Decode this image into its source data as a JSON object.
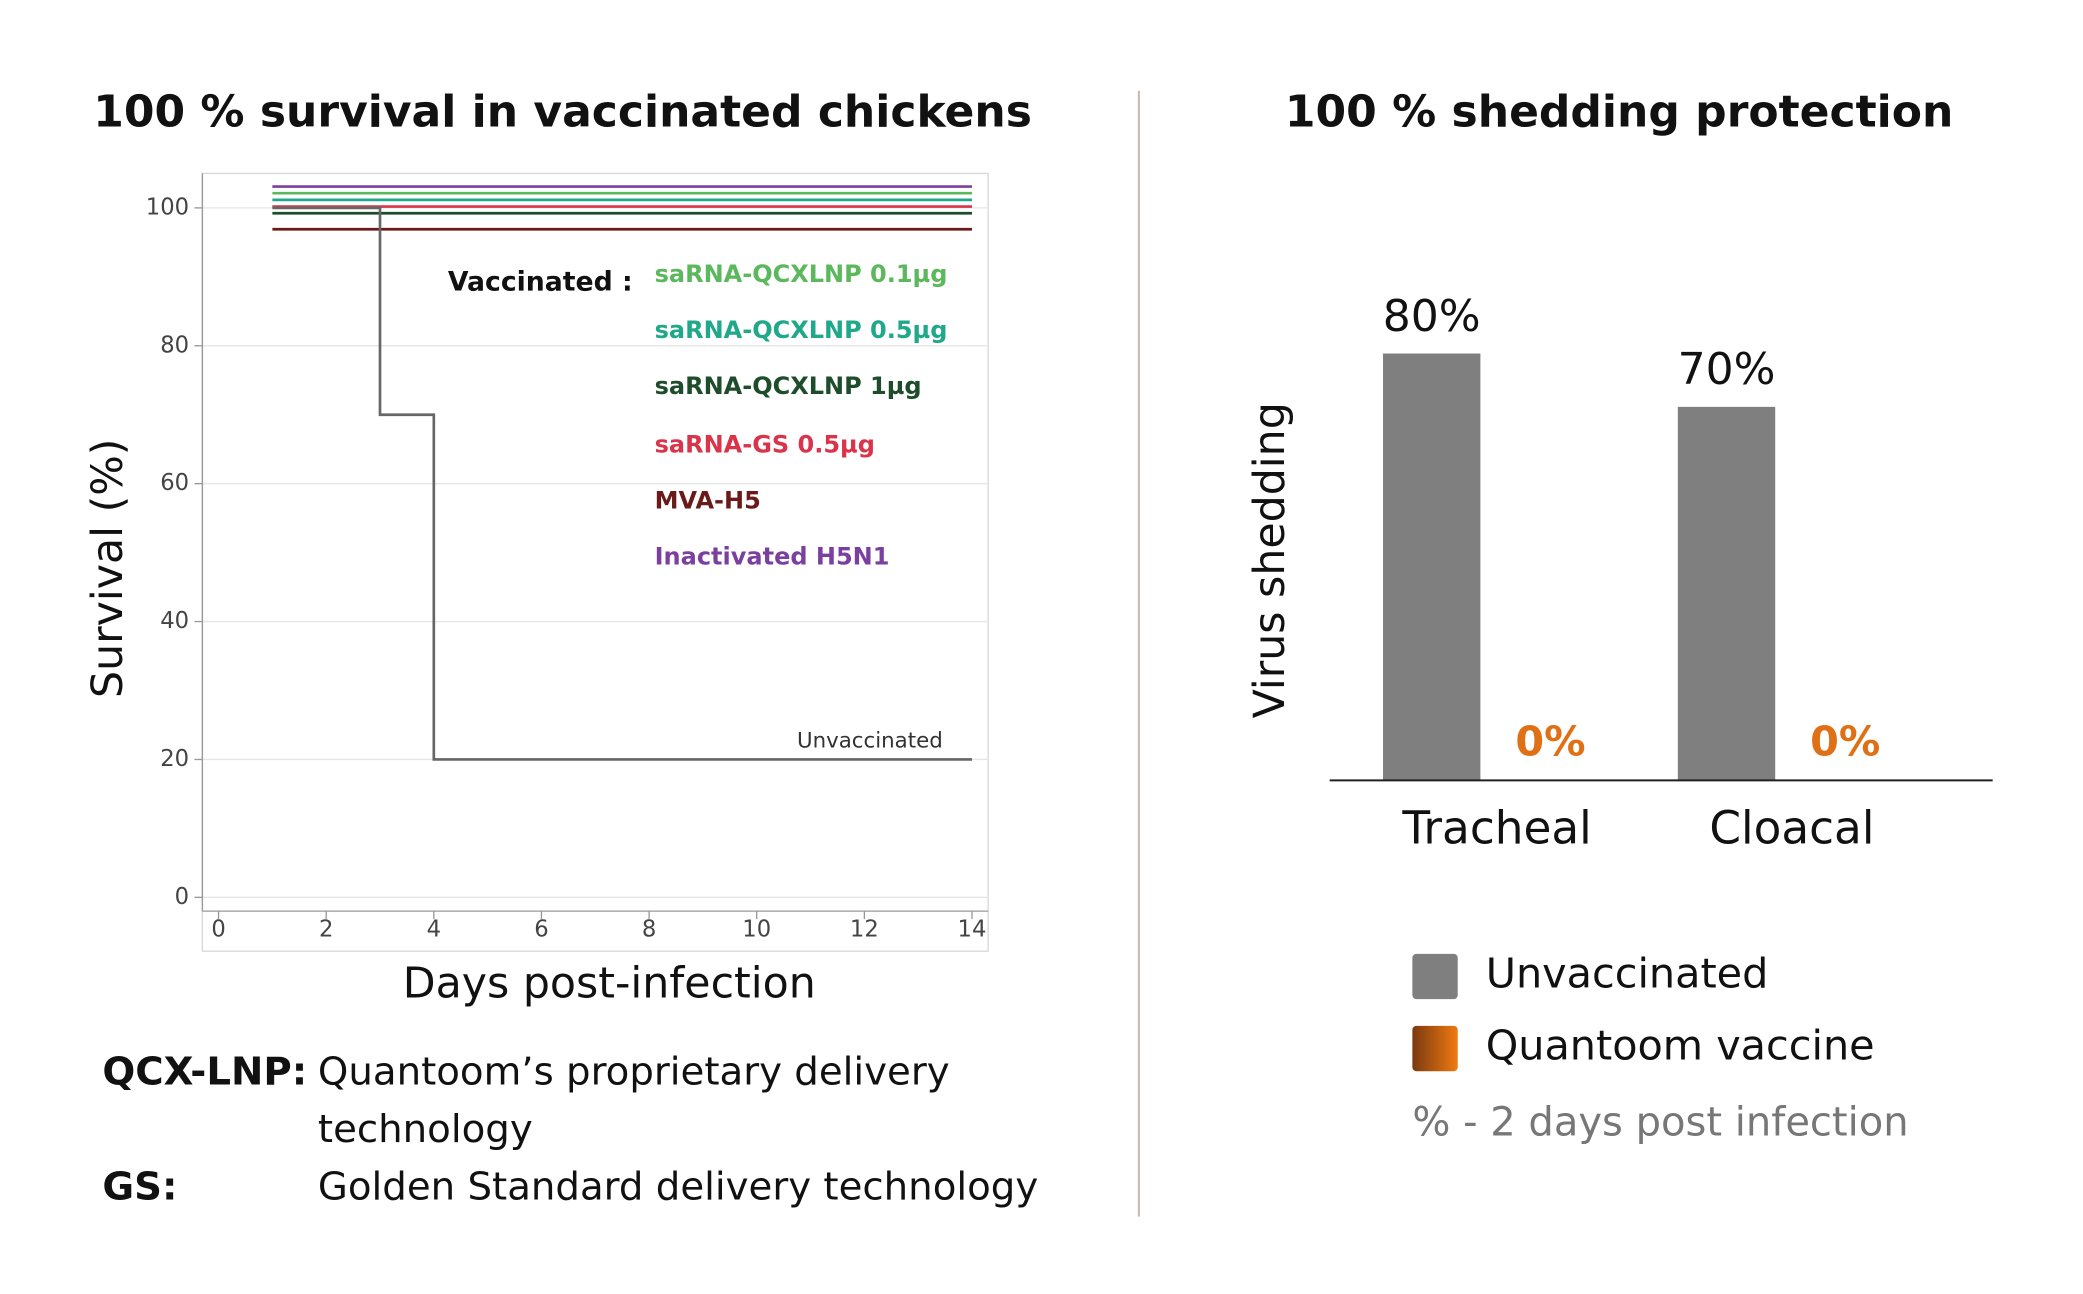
{
  "chart_data": [
    {
      "type": "line",
      "title": "100 % survival in vaccinated chickens",
      "x_label": "Days post-infection",
      "y_label": "Survival (%)",
      "legend_title": "Vaccinated :",
      "xlim": [
        -0.3,
        14.3
      ],
      "xticks": [
        0,
        2,
        4,
        6,
        8,
        10,
        12,
        14
      ],
      "ylim": [
        -2,
        105
      ],
      "yticks": [
        0,
        20,
        40,
        60,
        80,
        100
      ],
      "grid": true,
      "series": [
        {
          "name": "saRNA-QCXLNP 0.1µg",
          "color": "#5cb85c",
          "x": [
            1,
            14
          ],
          "values": [
            100,
            100
          ]
        },
        {
          "name": "saRNA-QCXLNP 0.5µg",
          "color": "#1fa88a",
          "x": [
            1,
            14
          ],
          "values": [
            100,
            100
          ]
        },
        {
          "name": "saRNA-QCXLNP 1µg",
          "color": "#1e4d2b",
          "x": [
            1,
            14
          ],
          "values": [
            100,
            100
          ]
        },
        {
          "name": "saRNA-GS 0.5µg",
          "color": "#d9344a",
          "x": [
            1,
            14
          ],
          "values": [
            100,
            100
          ]
        },
        {
          "name": "MVA-H5",
          "color": "#6b1a1a",
          "x": [
            1,
            14
          ],
          "values": [
            100,
            100
          ]
        },
        {
          "name": "Inactivated H5N1",
          "color": "#7b3fa0",
          "x": [
            1,
            14
          ],
          "values": [
            100,
            100
          ]
        },
        {
          "name": "Unvaccinated",
          "color": "#666666",
          "x": [
            1,
            3,
            3,
            4,
            4,
            14
          ],
          "values": [
            100,
            100,
            70,
            70,
            20,
            20
          ]
        }
      ],
      "notes": [
        {
          "term": "QCX-LNP:",
          "text": "Quantoom’s proprietary delivery technology"
        },
        {
          "term": "GS:",
          "text": "Golden Standard delivery technology"
        }
      ]
    },
    {
      "type": "bar",
      "title": "100 % shedding protection",
      "y_label": "Virus shedding",
      "categories": [
        "Tracheal",
        "Cloacal"
      ],
      "ylim": [
        0,
        100
      ],
      "series": [
        {
          "name": "Unvaccinated",
          "color": "#7f7f7f",
          "values": [
            80,
            70
          ],
          "value_labels": [
            "80%",
            "70%"
          ]
        },
        {
          "name": "Quantoom vaccine",
          "color": "#e07015",
          "values": [
            0,
            0
          ],
          "value_labels": [
            "0%",
            "0%"
          ]
        }
      ],
      "note": "% - 2 days post infection"
    }
  ]
}
